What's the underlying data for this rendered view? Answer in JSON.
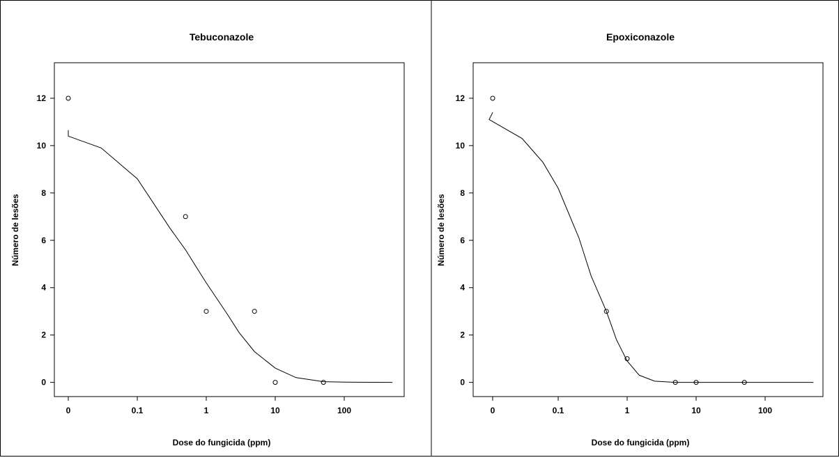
{
  "chart_data": [
    {
      "type": "scatter",
      "title": "Tebuconazole",
      "xlabel": "Dose do fungicida (ppm)",
      "ylabel": "Número de lesões",
      "x_scale": "log-with-zero",
      "x_ticks": [
        "0",
        "0.1",
        "1",
        "10",
        "100"
      ],
      "y_ticks": [
        0,
        2,
        4,
        6,
        8,
        10,
        12
      ],
      "ylim": [
        -0.6,
        13.5
      ],
      "points": [
        {
          "x": 0,
          "y": 12
        },
        {
          "x": 0.5,
          "y": 7
        },
        {
          "x": 1,
          "y": 3
        },
        {
          "x": 5,
          "y": 3
        },
        {
          "x": 10,
          "y": 0
        },
        {
          "x": 50,
          "y": 0
        }
      ],
      "fitted_curve": [
        {
          "x": 0,
          "y": 10.65
        },
        {
          "x": 0.01,
          "y": 10.4
        },
        {
          "x": 0.03,
          "y": 9.9
        },
        {
          "x": 0.1,
          "y": 8.6
        },
        {
          "x": 0.3,
          "y": 6.5
        },
        {
          "x": 0.5,
          "y": 5.6
        },
        {
          "x": 1,
          "y": 4.2
        },
        {
          "x": 2,
          "y": 2.9
        },
        {
          "x": 3,
          "y": 2.1
        },
        {
          "x": 5,
          "y": 1.3
        },
        {
          "x": 10,
          "y": 0.6
        },
        {
          "x": 20,
          "y": 0.2
        },
        {
          "x": 50,
          "y": 0.03
        },
        {
          "x": 100,
          "y": 0.01
        },
        {
          "x": 500,
          "y": 0
        }
      ],
      "grid": false,
      "legend": "none"
    },
    {
      "type": "scatter",
      "title": "Epoxiconazole",
      "xlabel": "Dose do fungicida (ppm)",
      "ylabel": "Número de lesões",
      "x_scale": "log-with-zero",
      "x_ticks": [
        "0",
        "0.1",
        "1",
        "10",
        "100"
      ],
      "y_ticks": [
        0,
        2,
        4,
        6,
        8,
        10,
        12
      ],
      "ylim": [
        -0.6,
        13.5
      ],
      "points": [
        {
          "x": 0,
          "y": 12
        },
        {
          "x": 0.5,
          "y": 3
        },
        {
          "x": 1,
          "y": 1
        },
        {
          "x": 5,
          "y": 0
        },
        {
          "x": 10,
          "y": 0
        },
        {
          "x": 50,
          "y": 0
        }
      ],
      "fitted_curve": [
        {
          "x": 0,
          "y": 11.4
        },
        {
          "x": 0.01,
          "y": 11.1
        },
        {
          "x": 0.03,
          "y": 10.3
        },
        {
          "x": 0.06,
          "y": 9.3
        },
        {
          "x": 0.1,
          "y": 8.2
        },
        {
          "x": 0.2,
          "y": 6.1
        },
        {
          "x": 0.3,
          "y": 4.5
        },
        {
          "x": 0.5,
          "y": 3.0
        },
        {
          "x": 0.7,
          "y": 1.8
        },
        {
          "x": 1,
          "y": 0.9
        },
        {
          "x": 1.5,
          "y": 0.3
        },
        {
          "x": 2.5,
          "y": 0.05
        },
        {
          "x": 5,
          "y": 0
        },
        {
          "x": 500,
          "y": 0
        }
      ],
      "grid": false,
      "legend": "none"
    }
  ]
}
